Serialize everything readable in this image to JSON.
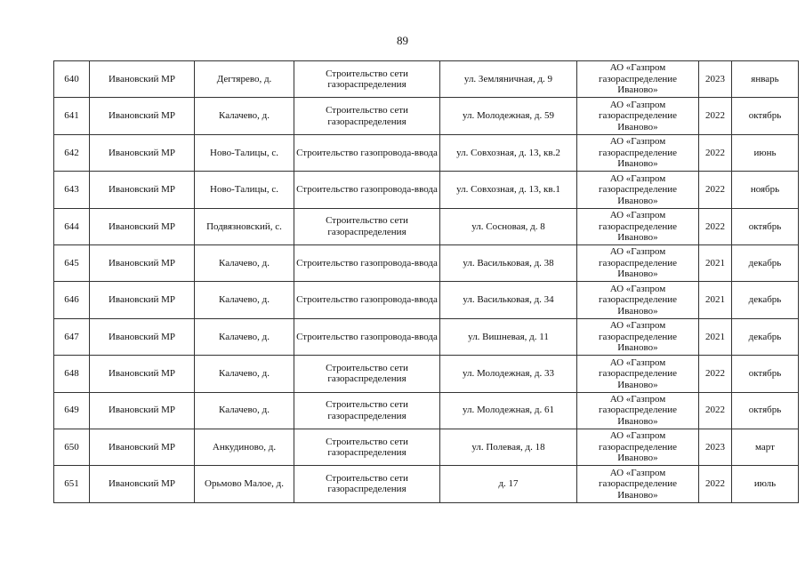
{
  "page_number": "89",
  "rows": [
    {
      "n": "640",
      "district": "Ивановский МР",
      "place": "Дегтярево, д.",
      "work": "Строительство сети газораспределения",
      "address": "ул. Земляничная, д. 9",
      "org": "АО «Газпром газораспределение Иваново»",
      "year": "2023",
      "month": "январь"
    },
    {
      "n": "641",
      "district": "Ивановский МР",
      "place": "Калачево, д.",
      "work": "Строительство сети газораспределения",
      "address": "ул. Молодежная, д. 59",
      "org": "АО «Газпром газораспределение Иваново»",
      "year": "2022",
      "month": "октябрь"
    },
    {
      "n": "642",
      "district": "Ивановский МР",
      "place": "Ново-Талицы, с.",
      "work": "Строительство газопровода-ввода",
      "address": "ул. Совхозная, д. 13, кв.2",
      "org": "АО «Газпром газораспределение Иваново»",
      "year": "2022",
      "month": "июнь"
    },
    {
      "n": "643",
      "district": "Ивановский МР",
      "place": "Ново-Талицы, с.",
      "work": "Строительство газопровода-ввода",
      "address": "ул. Совхозная, д. 13, кв.1",
      "org": "АО «Газпром газораспределение Иваново»",
      "year": "2022",
      "month": "ноябрь"
    },
    {
      "n": "644",
      "district": "Ивановский МР",
      "place": "Подвязновский, с.",
      "work": "Строительство сети газораспределения",
      "address": "ул. Сосновая, д. 8",
      "org": "АО «Газпром газораспределение Иваново»",
      "year": "2022",
      "month": "октябрь"
    },
    {
      "n": "645",
      "district": "Ивановский МР",
      "place": "Калачево, д.",
      "work": "Строительство газопровода-ввода",
      "address": "ул. Васильковая, д. 38",
      "org": "АО «Газпром газораспределение Иваново»",
      "year": "2021",
      "month": "декабрь"
    },
    {
      "n": "646",
      "district": "Ивановский МР",
      "place": "Калачево, д.",
      "work": "Строительство газопровода-ввода",
      "address": "ул. Васильковая, д. 34",
      "org": "АО «Газпром газораспределение Иваново»",
      "year": "2021",
      "month": "декабрь"
    },
    {
      "n": "647",
      "district": "Ивановский МР",
      "place": "Калачево, д.",
      "work": "Строительство газопровода-ввода",
      "address": "ул. Вишневая, д. 11",
      "org": "АО «Газпром газораспределение Иваново»",
      "year": "2021",
      "month": "декабрь"
    },
    {
      "n": "648",
      "district": "Ивановский МР",
      "place": "Калачево, д.",
      "work": "Строительство сети газораспределения",
      "address": "ул. Молодежная, д. 33",
      "org": "АО «Газпром газораспределение Иваново»",
      "year": "2022",
      "month": "октябрь"
    },
    {
      "n": "649",
      "district": "Ивановский МР",
      "place": "Калачево, д.",
      "work": "Строительство сети газораспределения",
      "address": "ул. Молодежная, д. 61",
      "org": "АО «Газпром газораспределение Иваново»",
      "year": "2022",
      "month": "октябрь"
    },
    {
      "n": "650",
      "district": "Ивановский МР",
      "place": "Анкудиново, д.",
      "work": "Строительство сети газораспределения",
      "address": "ул. Полевая, д. 18",
      "org": "АО «Газпром газораспределение Иваново»",
      "year": "2023",
      "month": "март"
    },
    {
      "n": "651",
      "district": "Ивановский МР",
      "place": "Орьмово Малое, д.",
      "work": "Строительство сети газораспределения",
      "address": "д. 17",
      "org": "АО «Газпром газораспределение Иваново»",
      "year": "2022",
      "month": "июль"
    }
  ]
}
